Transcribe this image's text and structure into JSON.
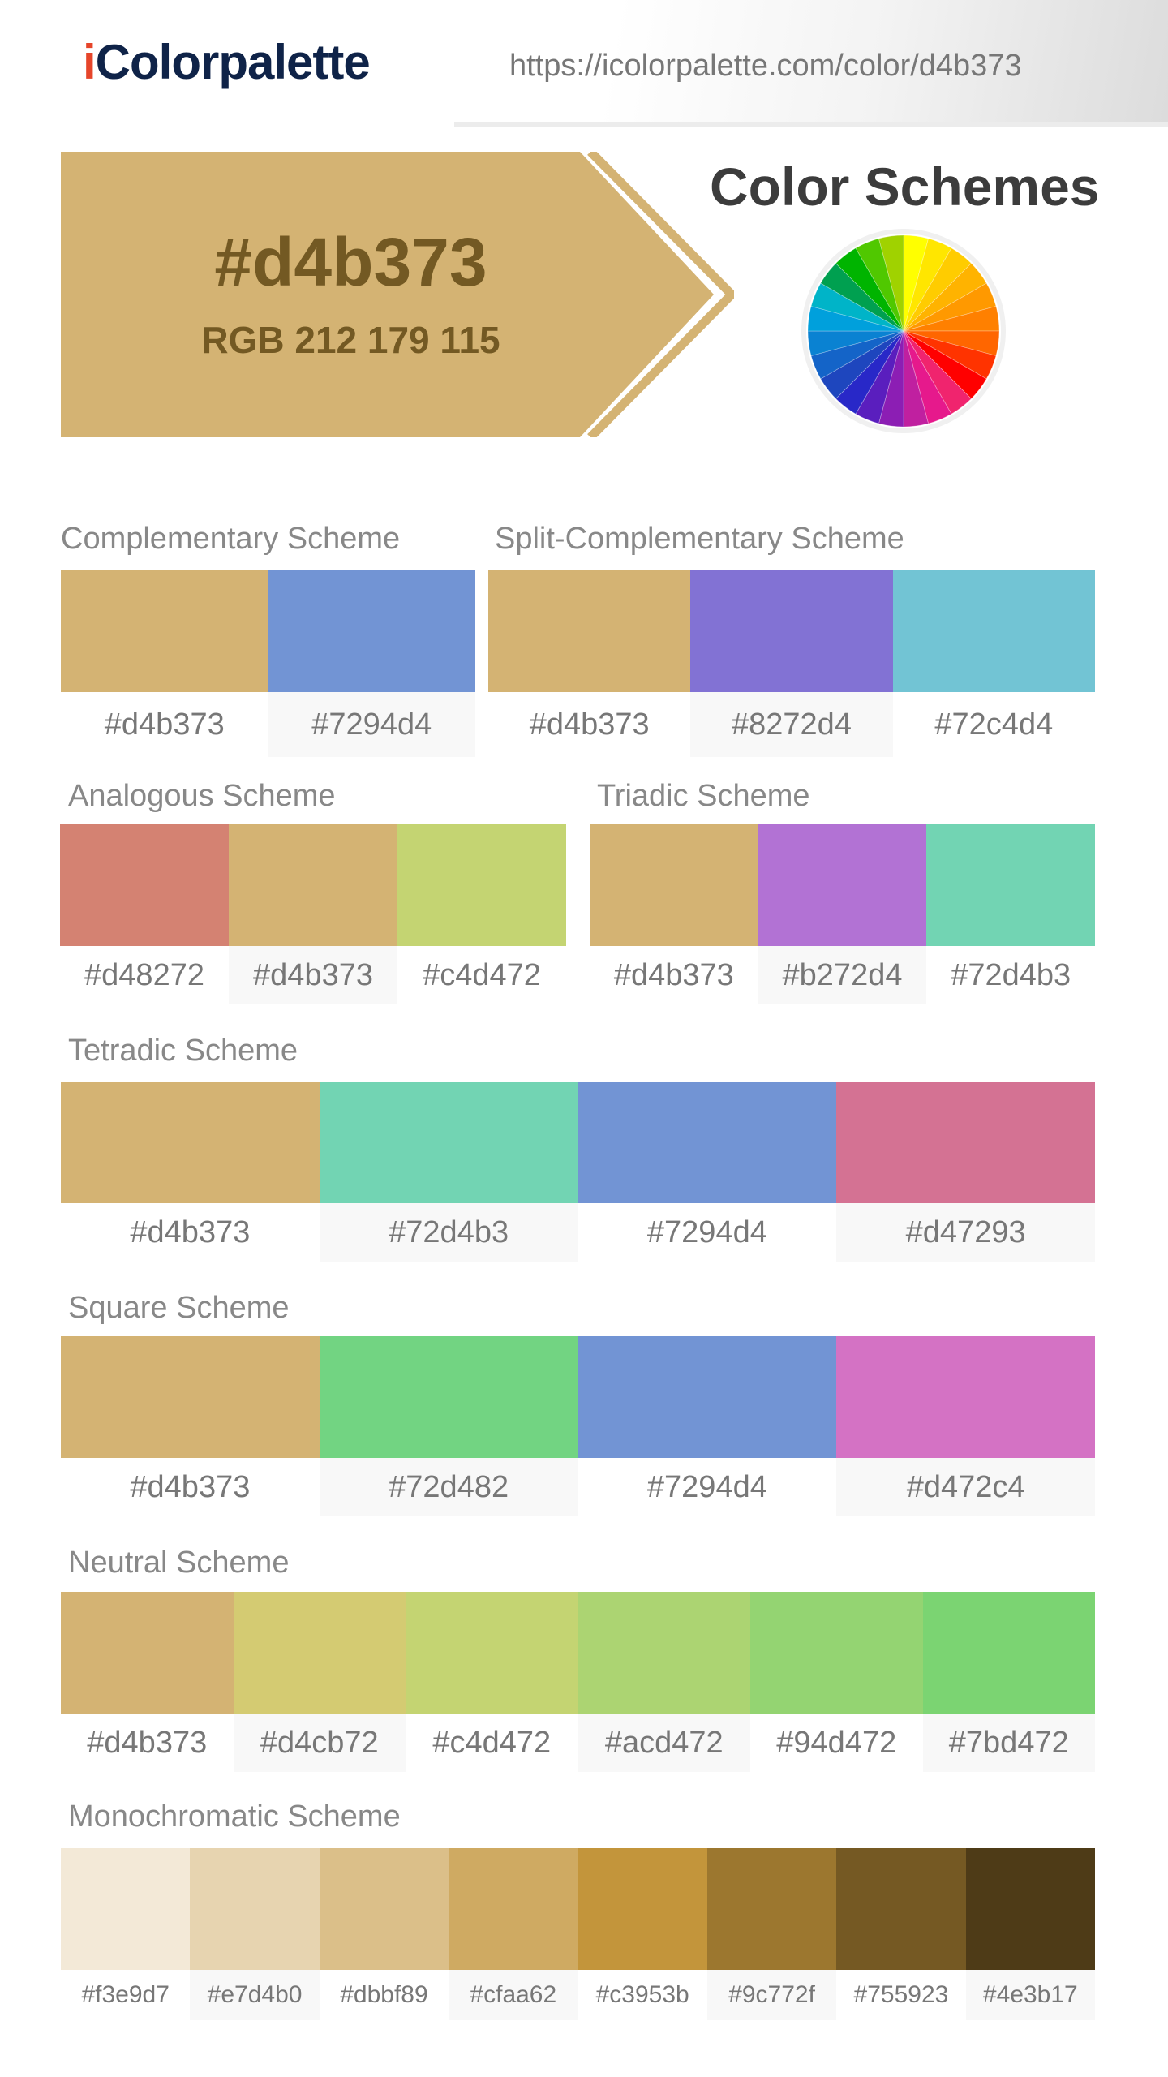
{
  "header": {
    "logo_i": "i",
    "logo_rest": "Colorpalette",
    "url": "https://icolorpalette.com/color/d4b373"
  },
  "hero": {
    "hex": "#d4b373",
    "rgb": "RGB 212 179 115",
    "color": "#d4b373",
    "text_color": "#735923"
  },
  "page_title": "Color Schemes",
  "schemes": {
    "complementary": {
      "title": "Complementary Scheme",
      "colors": [
        "#d4b373",
        "#7294d4"
      ]
    },
    "split": {
      "title": "Split-Complementary Scheme",
      "colors": [
        "#d4b373",
        "#8272d4",
        "#72c4d4"
      ]
    },
    "analogous": {
      "title": "Analogous Scheme",
      "colors": [
        "#d48272",
        "#d4b373",
        "#c4d472"
      ]
    },
    "triadic": {
      "title": "Triadic Scheme",
      "colors": [
        "#d4b373",
        "#b272d4",
        "#72d4b3"
      ]
    },
    "tetradic": {
      "title": "Tetradic Scheme",
      "colors": [
        "#d4b373",
        "#72d4b3",
        "#7294d4",
        "#d47293"
      ]
    },
    "square": {
      "title": "Square Scheme",
      "colors": [
        "#d4b373",
        "#72d482",
        "#7294d4",
        "#d472c4"
      ]
    },
    "neutral": {
      "title": "Neutral Scheme",
      "colors": [
        "#d4b373",
        "#d4cb72",
        "#c4d472",
        "#acd472",
        "#94d472",
        "#7bd472"
      ]
    },
    "monochromatic": {
      "title": "Monochromatic Scheme",
      "colors": [
        "#f3e9d7",
        "#e7d4b0",
        "#dbbf89",
        "#cfaa62",
        "#c3953b",
        "#9c772f",
        "#755923",
        "#4e3b17"
      ]
    }
  },
  "wheel_colors": [
    "#ffff00",
    "#ffe600",
    "#ffcc00",
    "#ffb300",
    "#ff9900",
    "#ff8000",
    "#ff6600",
    "#ff3300",
    "#ff0000",
    "#f0246e",
    "#e6198c",
    "#c020a0",
    "#8c1eb4",
    "#5a1ebe",
    "#2828c8",
    "#1e46be",
    "#1464c8",
    "#0a82d2",
    "#00a0dc",
    "#00b4c8",
    "#00a050",
    "#00b400",
    "#50c800",
    "#a0d200"
  ]
}
